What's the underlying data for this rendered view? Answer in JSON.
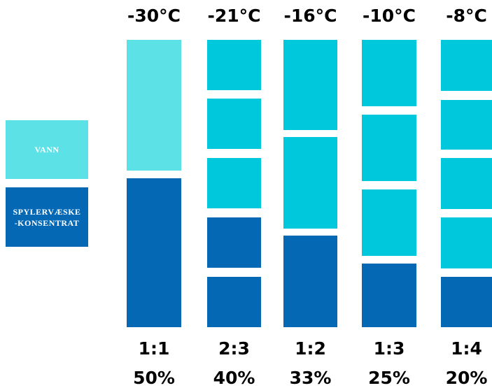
{
  "legend": [
    {
      "label": [
        "VANN"
      ]
    },
    {
      "label": [
        "SPYLERVÆSKE",
        "-KONSENTRAT"
      ]
    }
  ],
  "columns": [
    {
      "temperature": "-30°C",
      "ratio": "1:1",
      "percent": "50%"
    },
    {
      "temperature": "-21°C",
      "ratio": "2:3",
      "percent": "40%"
    },
    {
      "temperature": "-16°C",
      "ratio": "1:2",
      "percent": "33%"
    },
    {
      "temperature": "-10°C",
      "ratio": "1:3",
      "percent": "25%"
    },
    {
      "temperature": "-8°C",
      "ratio": "1:4",
      "percent": "20%"
    }
  ]
}
